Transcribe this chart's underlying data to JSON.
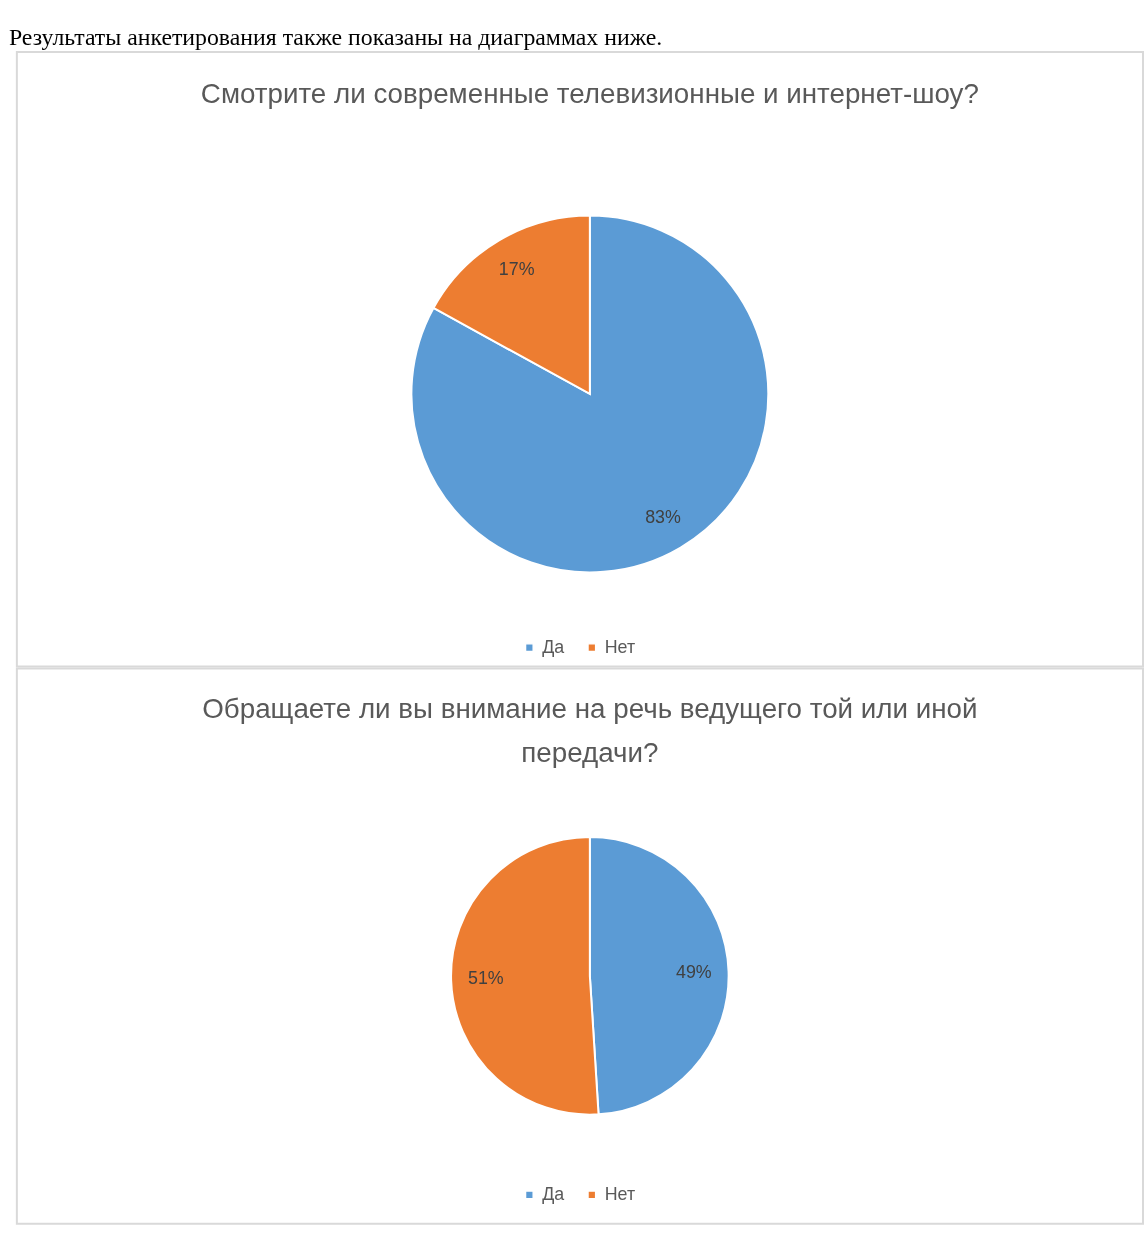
{
  "chart_data": [
    {
      "type": "pie",
      "title": "Смотрите ли современные телевизионные и интернет-шоу?",
      "categories": [
        "Да",
        "Нет"
      ],
      "values": [
        83,
        17
      ],
      "colors": [
        "#5b9bd5",
        "#ed7d31"
      ],
      "value_labels": [
        "83%",
        "17%"
      ],
      "legend": "bottom",
      "annotations": [
        "Результаты анкетирования также показаны на диаграммах ниже."
      ]
    },
    {
      "type": "pie",
      "title": "Обращаете ли вы внимание на речь ведущего той или иной передачи?",
      "categories": [
        "Да",
        "Нет"
      ],
      "values": [
        49,
        51
      ],
      "colors": [
        "#5b9bd5",
        "#ed7d31"
      ],
      "value_labels": [
        "49%",
        "51%"
      ],
      "legend": "bottom"
    }
  ]
}
